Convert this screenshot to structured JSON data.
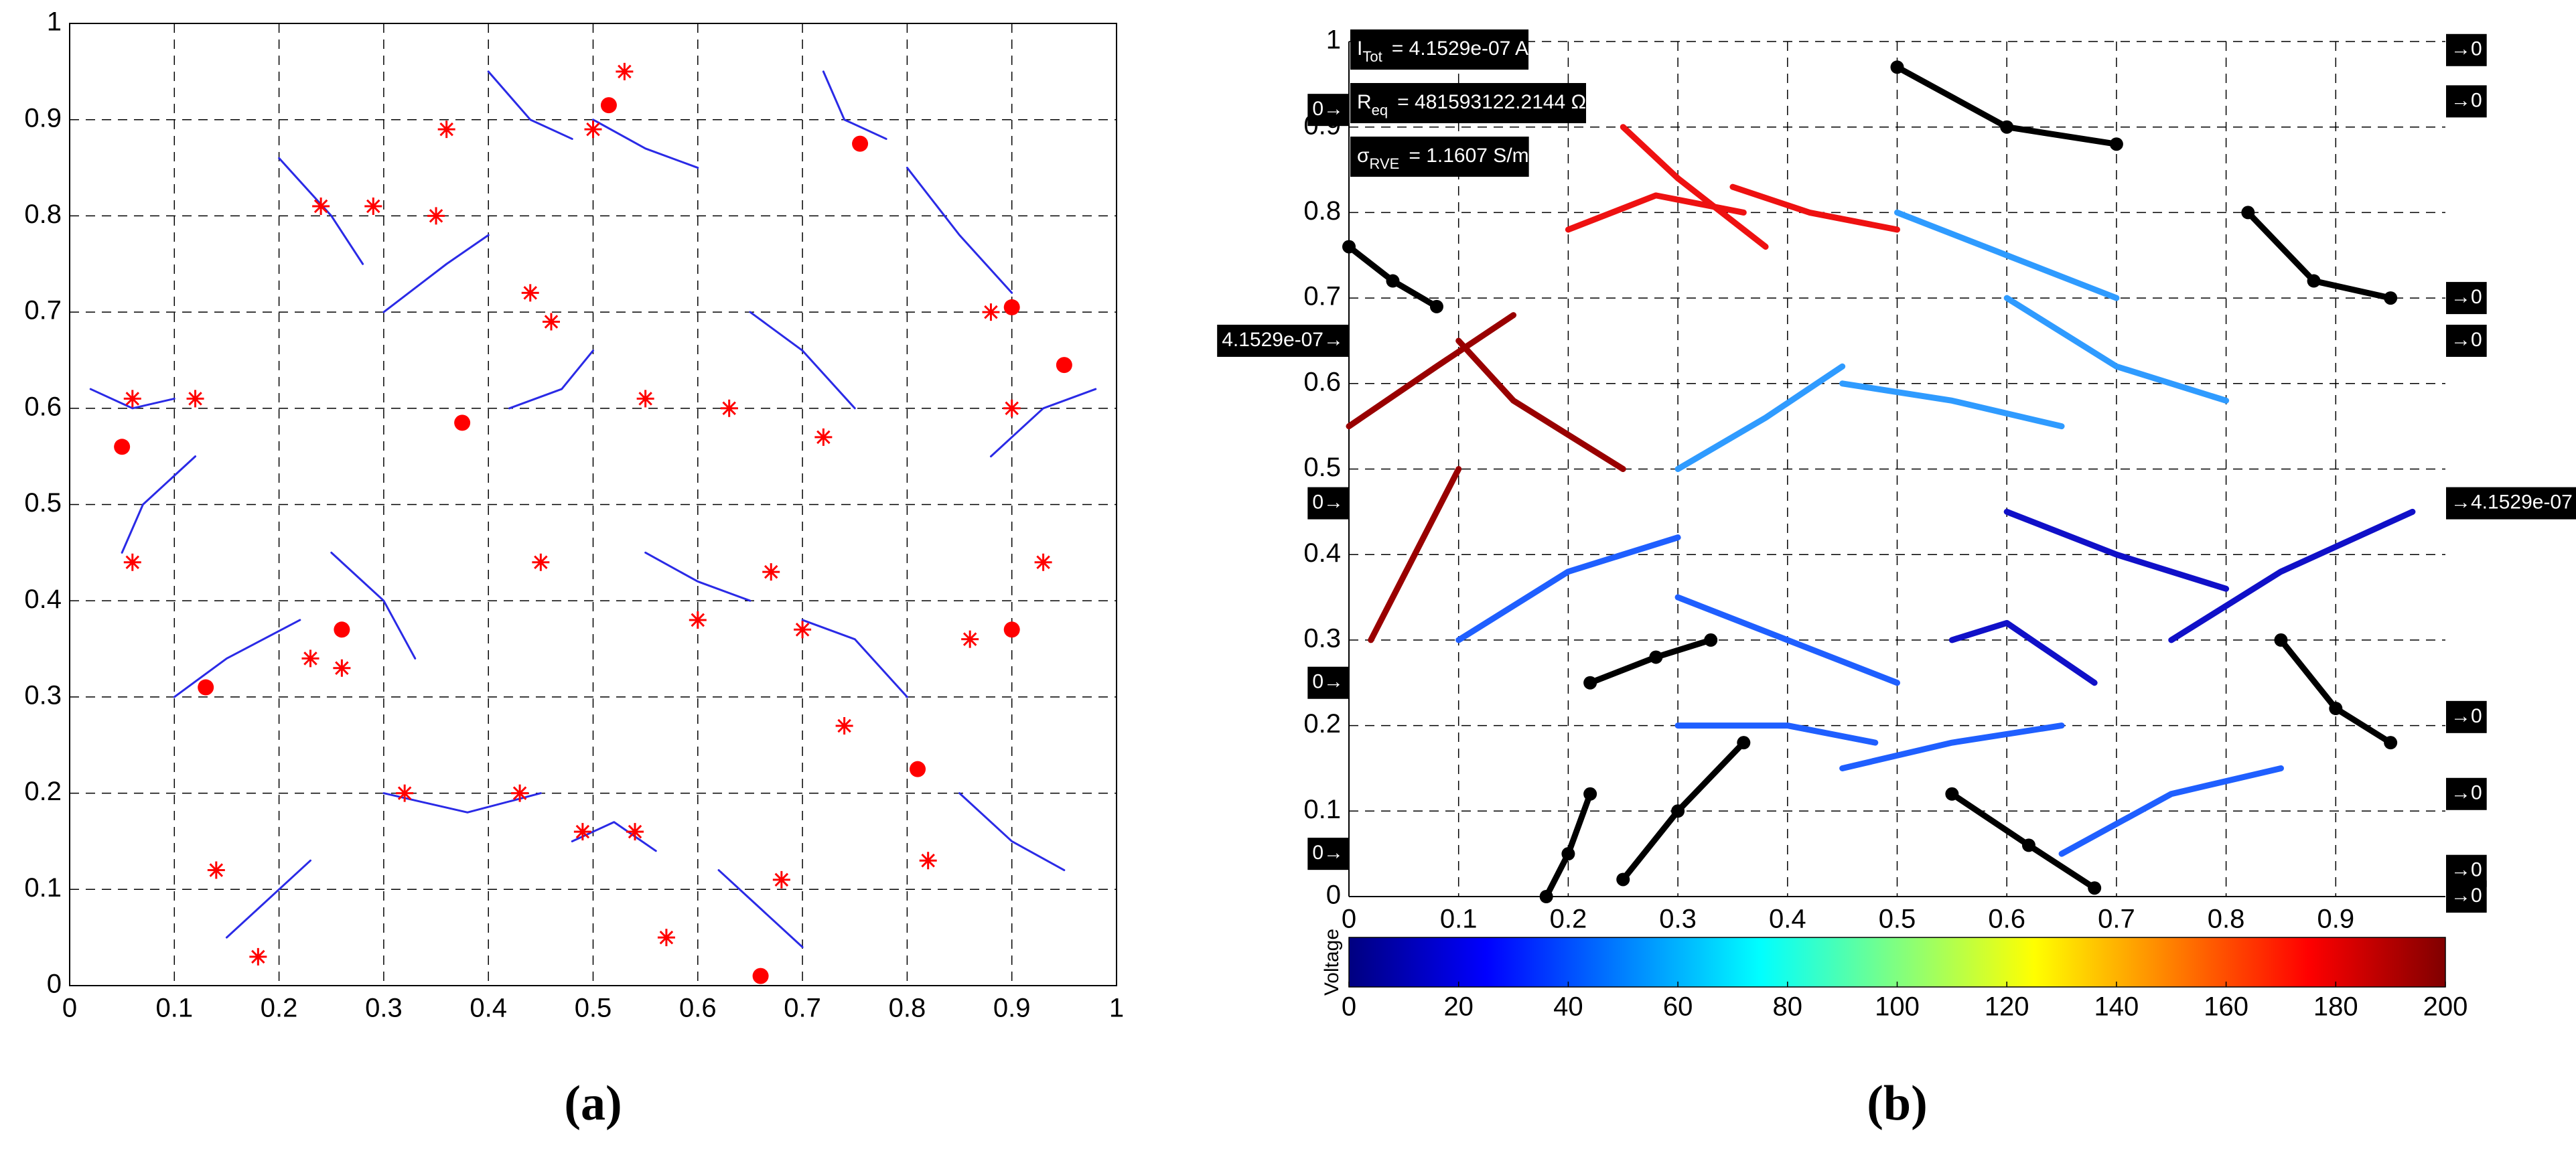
{
  "chart_data": [
    {
      "type": "network",
      "caption": "(a)",
      "xlim": [
        0,
        1
      ],
      "ylim": [
        0,
        1
      ],
      "xticks": [
        0,
        0.1,
        0.2,
        0.3,
        0.4,
        0.5,
        0.6,
        0.7,
        0.8,
        0.9,
        1
      ],
      "yticks": [
        0,
        0.1,
        0.2,
        0.3,
        0.4,
        0.5,
        0.6,
        0.7,
        0.8,
        0.9,
        1
      ],
      "grid": true,
      "box": true,
      "color": "#2a2ae6",
      "series": [
        {
          "x": [
            0.02,
            0.06,
            0.1
          ],
          "values": [
            0.62,
            0.6,
            0.61
          ]
        },
        {
          "x": [
            0.2,
            0.25,
            0.28
          ],
          "values": [
            0.86,
            0.8,
            0.75
          ]
        },
        {
          "x": [
            0.3,
            0.36,
            0.4
          ],
          "values": [
            0.7,
            0.75,
            0.78
          ]
        },
        {
          "x": [
            0.5,
            0.55,
            0.6
          ],
          "values": [
            0.9,
            0.87,
            0.85
          ]
        },
        {
          "x": [
            0.42,
            0.47,
            0.5
          ],
          "values": [
            0.6,
            0.62,
            0.66
          ]
        },
        {
          "x": [
            0.65,
            0.7,
            0.75
          ],
          "values": [
            0.7,
            0.66,
            0.6
          ]
        },
        {
          "x": [
            0.8,
            0.85,
            0.9
          ],
          "values": [
            0.85,
            0.78,
            0.72
          ]
        },
        {
          "x": [
            0.1,
            0.15,
            0.22
          ],
          "values": [
            0.3,
            0.34,
            0.38
          ]
        },
        {
          "x": [
            0.25,
            0.3,
            0.33
          ],
          "values": [
            0.45,
            0.4,
            0.34
          ]
        },
        {
          "x": [
            0.55,
            0.6,
            0.65
          ],
          "values": [
            0.45,
            0.42,
            0.4
          ]
        },
        {
          "x": [
            0.7,
            0.75,
            0.8
          ],
          "values": [
            0.38,
            0.36,
            0.3
          ]
        },
        {
          "x": [
            0.3,
            0.38,
            0.45
          ],
          "values": [
            0.2,
            0.18,
            0.2
          ]
        },
        {
          "x": [
            0.48,
            0.52,
            0.56
          ],
          "values": [
            0.15,
            0.17,
            0.14
          ]
        },
        {
          "x": [
            0.62,
            0.66,
            0.7
          ],
          "values": [
            0.12,
            0.08,
            0.04
          ]
        },
        {
          "x": [
            0.85,
            0.9,
            0.95
          ],
          "values": [
            0.2,
            0.15,
            0.12
          ]
        },
        {
          "x": [
            0.05,
            0.07,
            0.12
          ],
          "values": [
            0.45,
            0.5,
            0.55
          ]
        },
        {
          "x": [
            0.88,
            0.93,
            0.98
          ],
          "values": [
            0.55,
            0.6,
            0.62
          ]
        },
        {
          "x": [
            0.15,
            0.2,
            0.23
          ],
          "values": [
            0.05,
            0.1,
            0.13
          ]
        },
        {
          "x": [
            0.4,
            0.44,
            0.48
          ],
          "values": [
            0.95,
            0.9,
            0.88
          ]
        },
        {
          "x": [
            0.72,
            0.74,
            0.78
          ],
          "values": [
            0.95,
            0.9,
            0.88
          ]
        }
      ],
      "junctions": {
        "color": "#ff0000",
        "x": [
          0.06,
          0.12,
          0.24,
          0.29,
          0.35,
          0.36,
          0.5,
          0.53,
          0.44,
          0.46,
          0.55,
          0.63,
          0.72,
          0.88,
          0.9,
          0.06,
          0.23,
          0.26,
          0.45,
          0.6,
          0.67,
          0.7,
          0.32,
          0.43,
          0.49,
          0.54,
          0.68,
          0.74,
          0.82,
          0.57,
          0.14,
          0.18,
          0.86,
          0.93
        ],
        "values": [
          0.61,
          0.61,
          0.81,
          0.81,
          0.8,
          0.89,
          0.89,
          0.95,
          0.72,
          0.69,
          0.61,
          0.6,
          0.57,
          0.7,
          0.6,
          0.44,
          0.34,
          0.33,
          0.44,
          0.38,
          0.43,
          0.37,
          0.2,
          0.2,
          0.16,
          0.16,
          0.11,
          0.27,
          0.13,
          0.05,
          0.12,
          0.03,
          0.36,
          0.44
        ]
      },
      "contacts": {
        "color": "#ff0000",
        "x": [
          0.05,
          0.13,
          0.26,
          0.375,
          0.515,
          0.755,
          0.9,
          0.95,
          0.9,
          0.81,
          0.66
        ],
        "values": [
          0.56,
          0.31,
          0.37,
          0.585,
          0.915,
          0.875,
          0.705,
          0.645,
          0.37,
          0.225,
          0.01
        ]
      }
    },
    {
      "type": "network",
      "caption": "(b)",
      "xlim": [
        0,
        1
      ],
      "ylim": [
        0,
        1
      ],
      "xticks": [
        0,
        0.1,
        0.2,
        0.3,
        0.4,
        0.5,
        0.6,
        0.7,
        0.8,
        0.9
      ],
      "yticks": [
        0,
        0.1,
        0.2,
        0.3,
        0.4,
        0.5,
        0.6,
        0.7,
        0.8,
        0.9,
        1
      ],
      "grid": true,
      "box": false,
      "series": [
        {
          "color": "#ee1111",
          "x": [
            0.2,
            0.28,
            0.36
          ],
          "values": [
            0.78,
            0.82,
            0.8
          ]
        },
        {
          "color": "#ee1111",
          "x": [
            0.25,
            0.3,
            0.38
          ],
          "values": [
            0.9,
            0.84,
            0.76
          ]
        },
        {
          "color": "#ee1111",
          "x": [
            0.35,
            0.42,
            0.5
          ],
          "values": [
            0.83,
            0.8,
            0.78
          ]
        },
        {
          "color": "#990000",
          "x": [
            0.0,
            0.08,
            0.15
          ],
          "values": [
            0.55,
            0.62,
            0.68
          ]
        },
        {
          "color": "#990000",
          "x": [
            0.02,
            0.06,
            0.1
          ],
          "values": [
            0.3,
            0.4,
            0.5
          ]
        },
        {
          "color": "#990000",
          "x": [
            0.1,
            0.15,
            0.25
          ],
          "values": [
            0.65,
            0.58,
            0.5
          ]
        },
        {
          "color": "#2f9bff",
          "x": [
            0.5,
            0.6,
            0.7
          ],
          "values": [
            0.8,
            0.75,
            0.7
          ]
        },
        {
          "color": "#2f9bff",
          "x": [
            0.45,
            0.55,
            0.65
          ],
          "values": [
            0.6,
            0.58,
            0.55
          ]
        },
        {
          "color": "#2f9bff",
          "x": [
            0.6,
            0.7,
            0.8
          ],
          "values": [
            0.7,
            0.62,
            0.58
          ]
        },
        {
          "color": "#2f9bff",
          "x": [
            0.3,
            0.38,
            0.45
          ],
          "values": [
            0.5,
            0.56,
            0.62
          ]
        },
        {
          "color": "#1f5fff",
          "x": [
            0.1,
            0.2,
            0.3
          ],
          "values": [
            0.3,
            0.38,
            0.42
          ]
        },
        {
          "color": "#1f5fff",
          "x": [
            0.3,
            0.4,
            0.5
          ],
          "values": [
            0.35,
            0.3,
            0.25
          ]
        },
        {
          "color": "#1f5fff",
          "x": [
            0.3,
            0.4,
            0.48
          ],
          "values": [
            0.2,
            0.2,
            0.18
          ]
        },
        {
          "color": "#1f5fff",
          "x": [
            0.45,
            0.55,
            0.65
          ],
          "values": [
            0.15,
            0.18,
            0.2
          ]
        },
        {
          "color": "#1f5fff",
          "x": [
            0.65,
            0.75,
            0.85
          ],
          "values": [
            0.05,
            0.12,
            0.15
          ]
        },
        {
          "color": "#1010c8",
          "x": [
            0.6,
            0.7,
            0.8
          ],
          "values": [
            0.45,
            0.4,
            0.36
          ]
        },
        {
          "color": "#1010c8",
          "x": [
            0.75,
            0.85,
            0.97
          ],
          "values": [
            0.3,
            0.38,
            0.45
          ]
        },
        {
          "color": "#1010c8",
          "x": [
            0.55,
            0.6,
            0.68
          ],
          "values": [
            0.3,
            0.32,
            0.25
          ]
        },
        {
          "color": "#000000",
          "marker": true,
          "x": [
            0.5,
            0.6,
            0.7
          ],
          "values": [
            0.97,
            0.9,
            0.88
          ]
        },
        {
          "color": "#000000",
          "marker": true,
          "x": [
            0.82,
            0.88,
            0.95
          ],
          "values": [
            0.8,
            0.72,
            0.7
          ]
        },
        {
          "color": "#000000",
          "marker": true,
          "x": [
            0.0,
            0.04,
            0.08
          ],
          "values": [
            0.76,
            0.72,
            0.69
          ]
        },
        {
          "color": "#000000",
          "marker": true,
          "x": [
            0.25,
            0.3,
            0.36
          ],
          "values": [
            0.02,
            0.1,
            0.18
          ]
        },
        {
          "color": "#000000",
          "marker": true,
          "x": [
            0.85,
            0.9,
            0.95
          ],
          "values": [
            0.3,
            0.22,
            0.18
          ]
        },
        {
          "color": "#000000",
          "marker": true,
          "x": [
            0.18,
            0.2,
            0.22
          ],
          "values": [
            0.0,
            0.05,
            0.12
          ]
        },
        {
          "color": "#000000",
          "marker": true,
          "x": [
            0.55,
            0.62,
            0.68
          ],
          "values": [
            0.12,
            0.06,
            0.01
          ]
        },
        {
          "color": "#000000",
          "marker": true,
          "x": [
            0.22,
            0.28,
            0.33
          ],
          "values": [
            0.25,
            0.28,
            0.3
          ]
        }
      ],
      "annotations": [
        {
          "symbol": "I",
          "sub": "Tot",
          "text": "= 4.1529e-07 A"
        },
        {
          "symbol": "R",
          "sub": "eq",
          "text": "= 481593122.2144 Ω"
        },
        {
          "symbol": "σ",
          "sub": "RVE",
          "text": "= 1.1607 S/m"
        }
      ],
      "boundary_labels": [
        {
          "side": "left",
          "y": 0.92,
          "text": "0→"
        },
        {
          "side": "left",
          "y": 0.65,
          "text": "4.1529e-07→"
        },
        {
          "side": "left",
          "y": 0.46,
          "text": "0→"
        },
        {
          "side": "left",
          "y": 0.25,
          "text": "0→"
        },
        {
          "side": "left",
          "y": 0.05,
          "text": "0→"
        },
        {
          "side": "right",
          "y": 0.99,
          "text": "→0"
        },
        {
          "side": "right",
          "y": 0.93,
          "text": "→0"
        },
        {
          "side": "right",
          "y": 0.7,
          "text": "→0"
        },
        {
          "side": "right",
          "y": 0.65,
          "text": "→0"
        },
        {
          "side": "right",
          "y": 0.46,
          "text": "→4.1529e-07"
        },
        {
          "side": "right",
          "y": 0.21,
          "text": "→0"
        },
        {
          "side": "right",
          "y": 0.12,
          "text": "→0"
        },
        {
          "side": "right",
          "y": 0.03,
          "text": "→0"
        },
        {
          "side": "right",
          "y": 0.0,
          "text": "→0"
        }
      ],
      "colorbar": {
        "label": "Voltage",
        "colormap": "jet",
        "lim": [
          0,
          200
        ],
        "ticks": [
          0,
          20,
          40,
          60,
          80,
          100,
          120,
          140,
          160,
          180,
          200
        ]
      }
    }
  ]
}
